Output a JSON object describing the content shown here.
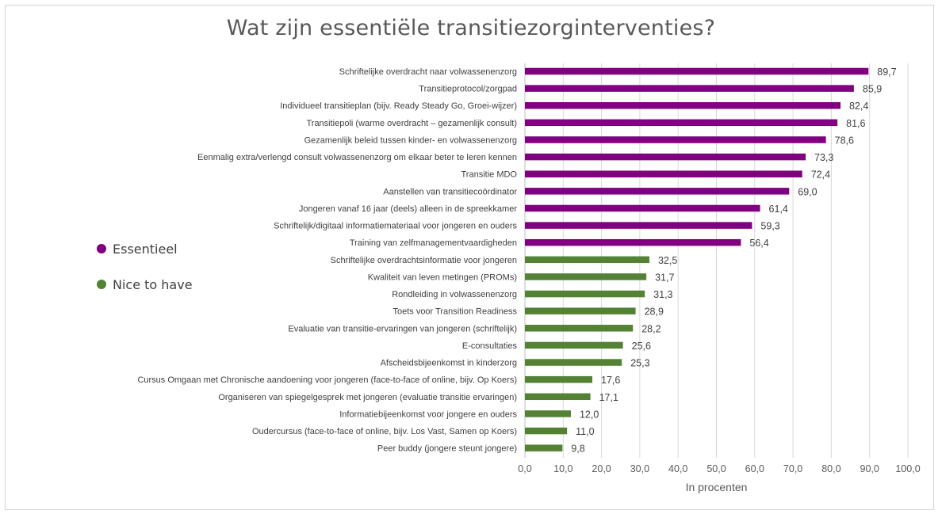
{
  "colors": {
    "essentieel": "#800080",
    "nice_to_have": "#548235",
    "grid": "#d9d9d9"
  },
  "legend": [
    {
      "label": "Essentieel",
      "color": "#800080"
    },
    {
      "label": "Nice to have",
      "color": "#548235"
    }
  ],
  "chart_data": {
    "type": "bar",
    "orientation": "horizontal",
    "title": "Wat zijn essentiële transitiezorginterventies?",
    "xlabel": "In procenten",
    "xlim": [
      0,
      100
    ],
    "xticks": [
      "0,0",
      "10,0",
      "20,0",
      "30,0",
      "40,0",
      "50,0",
      "60,0",
      "70,0",
      "80,0",
      "90,0",
      "100,0"
    ],
    "grid": true,
    "legend_position": "left",
    "bars": [
      {
        "label": "Schriftelijke overdracht naar volwassenenzorg",
        "value": 89.7,
        "display": "89,7",
        "group": "Essentieel"
      },
      {
        "label": "Transitieprotocol/zorgpad",
        "value": 85.9,
        "display": "85,9",
        "group": "Essentieel"
      },
      {
        "label": "Individueel transitieplan (bijv. Ready Steady Go, Groei-wijzer)",
        "value": 82.4,
        "display": "82,4",
        "group": "Essentieel"
      },
      {
        "label": "Transitiepoli (warme overdracht – gezamenlijk consult)",
        "value": 81.6,
        "display": "81,6",
        "group": "Essentieel"
      },
      {
        "label": "Gezamenlijk beleid tussen kinder- en volwassenenzorg",
        "value": 78.6,
        "display": "78,6",
        "group": "Essentieel"
      },
      {
        "label": "Eenmalig extra/verlengd consult volwassenenzorg om elkaar beter te leren kennen",
        "value": 73.3,
        "display": "73,3",
        "group": "Essentieel"
      },
      {
        "label": "Transitie MDO",
        "value": 72.4,
        "display": "72,4",
        "group": "Essentieel"
      },
      {
        "label": "Aanstellen van transitiecoördinator",
        "value": 69.0,
        "display": "69,0",
        "group": "Essentieel"
      },
      {
        "label": "Jongeren vanaf 16 jaar (deels) alleen in de spreekkamer",
        "value": 61.4,
        "display": "61,4",
        "group": "Essentieel"
      },
      {
        "label": "Schriftelijk/digitaal informatiemateriaal voor jongeren en ouders",
        "value": 59.3,
        "display": "59,3",
        "group": "Essentieel"
      },
      {
        "label": "Training van zelfmanagementvaardigheden",
        "value": 56.4,
        "display": "56,4",
        "group": "Essentieel"
      },
      {
        "label": "Schriftelijke overdrachtsinformatie voor jongeren",
        "value": 32.5,
        "display": "32,5",
        "group": "Nice to have"
      },
      {
        "label": "Kwaliteit van leven metingen (PROMs)",
        "value": 31.7,
        "display": "31,7",
        "group": "Nice to have"
      },
      {
        "label": "Rondleiding in volwassenenzorg",
        "value": 31.3,
        "display": "31,3",
        "group": "Nice to have"
      },
      {
        "label": "Toets voor Transition Readiness",
        "value": 28.9,
        "display": "28,9",
        "group": "Nice to have"
      },
      {
        "label": "Evaluatie van transitie-ervaringen van jongeren (schriftelijk)",
        "value": 28.2,
        "display": "28,2",
        "group": "Nice to have"
      },
      {
        "label": "E-consultaties",
        "value": 25.6,
        "display": "25,6",
        "group": "Nice to have"
      },
      {
        "label": "Afscheidsbijeenkomst in kinderzorg",
        "value": 25.3,
        "display": "25,3",
        "group": "Nice to have"
      },
      {
        "label": "Cursus Omgaan met Chronische aandoening voor jongeren (face-to-face of online, bijv. Op Koers)",
        "value": 17.6,
        "display": "17,6",
        "group": "Nice to have"
      },
      {
        "label": "Organiseren van spiegelgesprek met jongeren (evaluatie transitie ervaringen)",
        "value": 17.1,
        "display": "17,1",
        "group": "Nice to have"
      },
      {
        "label": "Informatiebijeenkomst voor jongere en ouders",
        "value": 12.0,
        "display": "12,0",
        "group": "Nice to have"
      },
      {
        "label": "Oudercursus (face-to-face of online, bijv. Los Vast, Samen op Koers)",
        "value": 11.0,
        "display": "11,0",
        "group": "Nice to have"
      },
      {
        "label": "Peer buddy (jongere steunt jongere)",
        "value": 9.8,
        "display": "9,8",
        "group": "Nice to have"
      }
    ]
  }
}
